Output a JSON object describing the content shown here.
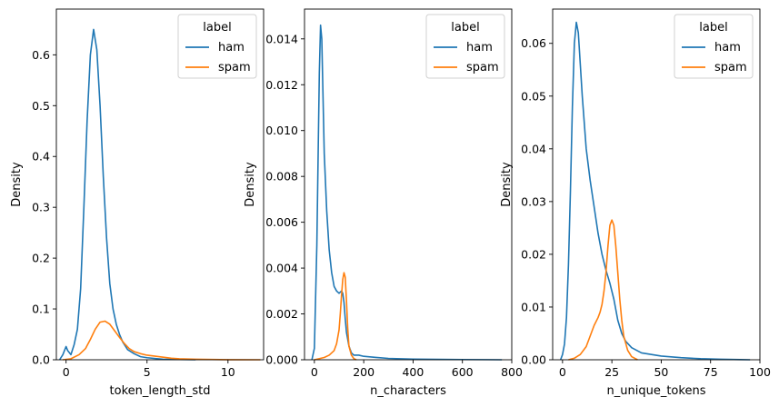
{
  "chart_data": [
    {
      "type": "line",
      "title": "",
      "xlabel": "token_length_std",
      "ylabel": "Density",
      "xlim": [
        -0.6,
        12.2
      ],
      "ylim": [
        0,
        0.69
      ],
      "xticks": [
        0,
        5,
        10
      ],
      "yticks": [
        0.0,
        0.1,
        0.2,
        0.3,
        0.4,
        0.5,
        0.6
      ],
      "ytick_labels": [
        "0.0",
        "0.1",
        "0.2",
        "0.3",
        "0.4",
        "0.5",
        "0.6"
      ],
      "legend": {
        "title": "label",
        "position": "top-right"
      },
      "series": [
        {
          "name": "ham",
          "color": "#1f77b4",
          "x": [
            -0.4,
            -0.2,
            0.0,
            0.1,
            0.3,
            0.5,
            0.7,
            0.9,
            1.1,
            1.3,
            1.5,
            1.7,
            1.9,
            2.1,
            2.3,
            2.5,
            2.7,
            2.9,
            3.1,
            3.3,
            3.5,
            3.8,
            4.2,
            4.6,
            5.0,
            6.0,
            7.0,
            8.0
          ],
          "y": [
            0.0,
            0.01,
            0.026,
            0.018,
            0.01,
            0.03,
            0.06,
            0.14,
            0.3,
            0.47,
            0.6,
            0.65,
            0.61,
            0.5,
            0.36,
            0.24,
            0.15,
            0.1,
            0.07,
            0.05,
            0.035,
            0.02,
            0.012,
            0.006,
            0.004,
            0.001,
            0.0005,
            0.0
          ]
        },
        {
          "name": "spam",
          "color": "#ff7f0e",
          "x": [
            -0.2,
            0.3,
            0.8,
            1.2,
            1.5,
            1.8,
            2.1,
            2.4,
            2.7,
            3.0,
            3.3,
            3.6,
            3.9,
            4.2,
            4.6,
            5.0,
            5.5,
            6.0,
            6.5,
            7.0,
            8.0,
            9.0,
            10.0,
            12.0
          ],
          "y": [
            0.0,
            0.002,
            0.01,
            0.022,
            0.04,
            0.06,
            0.074,
            0.076,
            0.07,
            0.057,
            0.044,
            0.032,
            0.022,
            0.016,
            0.012,
            0.009,
            0.007,
            0.005,
            0.003,
            0.002,
            0.001,
            0.0005,
            0.0002,
            0.0
          ]
        }
      ]
    },
    {
      "type": "line",
      "title": "",
      "xlabel": "n_characters",
      "ylabel": "Density",
      "xlim": [
        -40,
        800
      ],
      "ylim": [
        0,
        0.0153
      ],
      "xticks": [
        0,
        200,
        400,
        600,
        800
      ],
      "yticks": [
        0.0,
        0.002,
        0.004,
        0.006,
        0.008,
        0.01,
        0.012,
        0.014
      ],
      "ytick_labels": [
        "0.000",
        "0.002",
        "0.004",
        "0.006",
        "0.008",
        "0.010",
        "0.012",
        "0.014"
      ],
      "legend": {
        "title": "label",
        "position": "top-right"
      },
      "series": [
        {
          "name": "ham",
          "color": "#1f77b4",
          "x": [
            -10,
            0,
            10,
            20,
            25,
            30,
            35,
            40,
            50,
            60,
            70,
            80,
            90,
            100,
            110,
            115,
            120,
            125,
            130,
            140,
            150,
            160,
            180,
            200,
            250,
            300,
            400,
            500,
            600,
            700,
            760
          ],
          "y": [
            0.0,
            0.0005,
            0.005,
            0.0125,
            0.0146,
            0.014,
            0.0115,
            0.009,
            0.0065,
            0.0048,
            0.0038,
            0.0032,
            0.003,
            0.0029,
            0.003,
            0.0029,
            0.0025,
            0.0018,
            0.0012,
            0.0006,
            0.0003,
            0.0002,
            0.0002,
            0.00015,
            0.0001,
            6e-05,
            3e-05,
            2e-05,
            1e-05,
            5e-06,
            0.0
          ]
        },
        {
          "name": "spam",
          "color": "#ff7f0e",
          "x": [
            0,
            20,
            40,
            60,
            80,
            90,
            100,
            105,
            110,
            115,
            120,
            125,
            130,
            135,
            140,
            150,
            160,
            170
          ],
          "y": [
            0.0,
            5e-05,
            0.0001,
            0.0002,
            0.0004,
            0.0007,
            0.0013,
            0.002,
            0.0028,
            0.0035,
            0.0038,
            0.0036,
            0.0026,
            0.0014,
            0.0006,
            0.0002,
            5e-05,
            0.0
          ]
        }
      ]
    },
    {
      "type": "line",
      "title": "",
      "xlabel": "n_unique_tokens",
      "ylabel": "Density",
      "xlim": [
        -5,
        100
      ],
      "ylim": [
        0,
        0.0665
      ],
      "xticks": [
        0,
        25,
        50,
        75,
        100
      ],
      "yticks": [
        0.0,
        0.01,
        0.02,
        0.03,
        0.04,
        0.05,
        0.06
      ],
      "ytick_labels": [
        "0.00",
        "0.01",
        "0.02",
        "0.03",
        "0.04",
        "0.05",
        "0.06"
      ],
      "legend": {
        "title": "label",
        "position": "top-right"
      },
      "series": [
        {
          "name": "ham",
          "color": "#1f77b4",
          "x": [
            -1,
            0,
            1,
            2,
            3,
            4,
            5,
            6,
            7,
            8,
            9,
            10,
            11,
            12,
            14,
            16,
            18,
            20,
            22,
            24,
            25,
            26,
            27,
            28,
            30,
            32,
            35,
            40,
            50,
            60,
            70,
            80,
            90,
            95
          ],
          "y": [
            0.0,
            0.001,
            0.003,
            0.008,
            0.018,
            0.032,
            0.048,
            0.06,
            0.064,
            0.062,
            0.056,
            0.05,
            0.045,
            0.04,
            0.034,
            0.029,
            0.024,
            0.02,
            0.017,
            0.0145,
            0.013,
            0.0115,
            0.0095,
            0.0075,
            0.005,
            0.0035,
            0.0023,
            0.0013,
            0.0007,
            0.0004,
            0.0002,
            0.0001,
            3e-05,
            0.0
          ]
        },
        {
          "name": "spam",
          "color": "#ff7f0e",
          "x": [
            3,
            6,
            9,
            12,
            14,
            16,
            18,
            19,
            20,
            21,
            22,
            23,
            24,
            25,
            26,
            27,
            28,
            29,
            30,
            31,
            33,
            35,
            38
          ],
          "y": [
            0.0,
            0.0003,
            0.001,
            0.0025,
            0.0045,
            0.0065,
            0.008,
            0.009,
            0.0105,
            0.013,
            0.0165,
            0.0215,
            0.0255,
            0.0265,
            0.0255,
            0.0215,
            0.0165,
            0.0115,
            0.0075,
            0.0045,
            0.0018,
            0.0006,
            0.0
          ]
        }
      ]
    }
  ]
}
